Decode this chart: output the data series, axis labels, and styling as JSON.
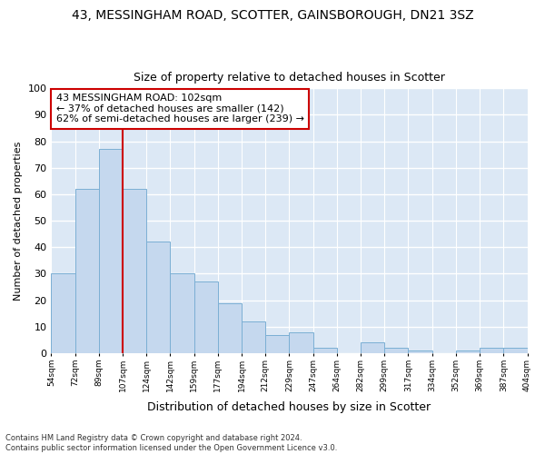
{
  "title1": "43, MESSINGHAM ROAD, SCOTTER, GAINSBOROUGH, DN21 3SZ",
  "title2": "Size of property relative to detached houses in Scotter",
  "xlabel": "Distribution of detached houses by size in Scotter",
  "ylabel": "Number of detached properties",
  "bar_values": [
    30,
    62,
    77,
    62,
    42,
    30,
    27,
    19,
    12,
    7,
    8,
    2,
    0,
    4,
    2,
    1,
    0,
    1,
    2,
    2
  ],
  "x_labels": [
    "54sqm",
    "72sqm",
    "89sqm",
    "107sqm",
    "124sqm",
    "142sqm",
    "159sqm",
    "177sqm",
    "194sqm",
    "212sqm",
    "229sqm",
    "247sqm",
    "264sqm",
    "282sqm",
    "299sqm",
    "317sqm",
    "334sqm",
    "352sqm",
    "369sqm",
    "387sqm",
    "404sqm"
  ],
  "bar_color": "#c5d8ee",
  "bar_edge_color": "#7bafd4",
  "vline_x_bar": 3,
  "vline_color": "#cc0000",
  "annotation_text": "43 MESSINGHAM ROAD: 102sqm\n← 37% of detached houses are smaller (142)\n62% of semi-detached houses are larger (239) →",
  "annotation_box_color": "#ffffff",
  "annotation_box_edge": "#cc0000",
  "ylim": [
    0,
    100
  ],
  "yticks": [
    0,
    10,
    20,
    30,
    40,
    50,
    60,
    70,
    80,
    90,
    100
  ],
  "footnote": "Contains HM Land Registry data © Crown copyright and database right 2024.\nContains public sector information licensed under the Open Government Licence v3.0.",
  "bg_color": "#ffffff",
  "plot_bg_color": "#dce8f5",
  "grid_color": "#ffffff",
  "title1_fontsize": 10,
  "title2_fontsize": 9
}
